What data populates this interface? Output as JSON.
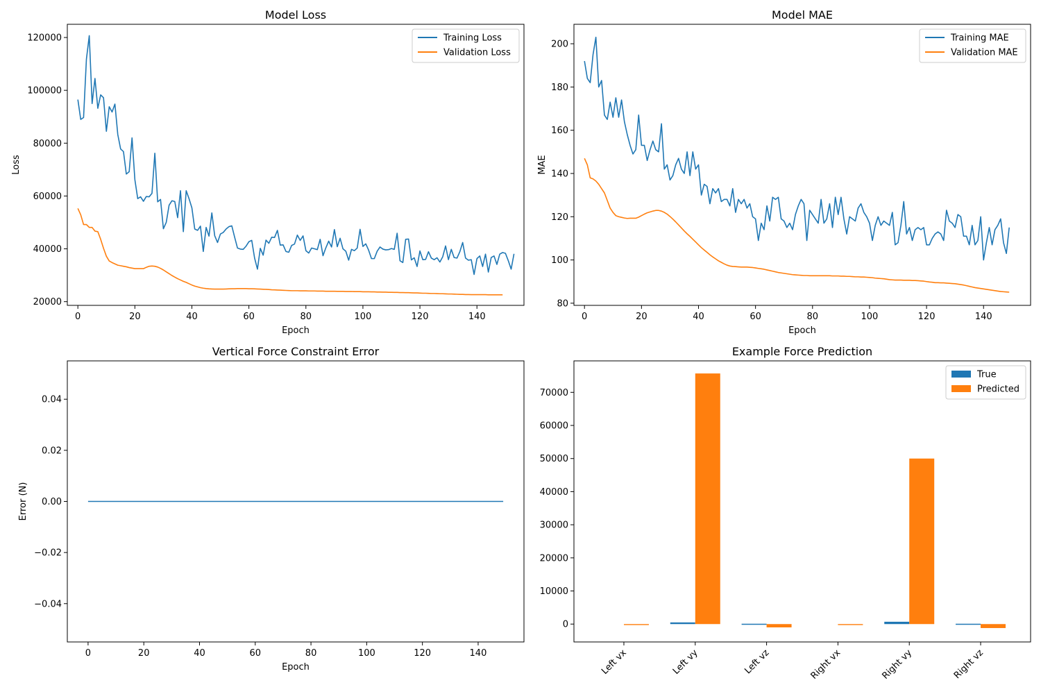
{
  "chart_data": [
    {
      "type": "line",
      "title": "Model Loss",
      "xlabel": "Epoch",
      "ylabel": "Loss",
      "xlim": [
        -3.7,
        156.5
      ],
      "ylim": [
        18600,
        125000
      ],
      "xticks": [
        0,
        20,
        40,
        60,
        80,
        100,
        120,
        140
      ],
      "yticks": [
        20000,
        40000,
        60000,
        80000,
        100000,
        120000
      ],
      "legend": {
        "placement": "top-right"
      },
      "grid": false,
      "series": [
        {
          "name": "Training Loss",
          "color": "#1f77b4",
          "x_start": 0,
          "x_step": 1,
          "y": [
            96500,
            89000,
            89700,
            111800,
            120700,
            95000,
            104500,
            93200,
            98300,
            97200,
            84500,
            93800,
            91800,
            94800,
            83300,
            77800,
            76800,
            68300,
            69200,
            82000,
            66200,
            59000,
            59700,
            58000,
            59800,
            59700,
            61000,
            76200,
            57800,
            58700,
            47600,
            50000,
            56500,
            58200,
            57900,
            51800,
            62000,
            46500,
            62000,
            59000,
            55500,
            47500,
            47000,
            48600,
            39000,
            48100,
            44800,
            53600,
            45000,
            42400,
            45600,
            46200,
            47500,
            48400,
            48700,
            44400,
            40300,
            39900,
            39800,
            41000,
            42700,
            43200,
            36500,
            32300,
            40200,
            37600,
            43300,
            42100,
            44400,
            44300,
            47000,
            41400,
            41500,
            39000,
            38700,
            41300,
            41800,
            45200,
            43200,
            44900,
            39300,
            38400,
            40300,
            40000,
            39700,
            43600,
            37400,
            40400,
            42900,
            40700,
            47300,
            40800,
            44000,
            40000,
            39100,
            35700,
            39800,
            39300,
            40300,
            47400,
            40900,
            41900,
            39500,
            36300,
            36300,
            39100,
            40700,
            39900,
            39600,
            39700,
            40100,
            39800,
            45900,
            35500,
            34800,
            43600,
            43700,
            35800,
            36600,
            33300,
            39200,
            35900,
            36000,
            38900,
            36500,
            35900,
            36600,
            35000,
            37000,
            41100,
            35900,
            39800,
            36700,
            36500,
            38900,
            42400,
            36500,
            35700,
            35900,
            30300,
            36300,
            37300,
            33300,
            38000,
            31200,
            36700,
            37300,
            34100,
            38000,
            38600,
            38300,
            35500,
            32300,
            38100
          ]
        },
        {
          "name": "Validation Loss",
          "color": "#ff7f0e",
          "x_start": 0,
          "x_step": 1,
          "y": [
            55300,
            52900,
            49200,
            49200,
            48100,
            48100,
            46700,
            46500,
            43600,
            40200,
            37200,
            35400,
            34800,
            34300,
            33800,
            33600,
            33400,
            33200,
            32900,
            32700,
            32500,
            32500,
            32500,
            32500,
            33000,
            33400,
            33500,
            33400,
            33100,
            32600,
            32000,
            31300,
            30600,
            29900,
            29300,
            28700,
            28200,
            27700,
            27300,
            26800,
            26300,
            25900,
            25600,
            25300,
            25100,
            24950,
            24850,
            24800,
            24750,
            24750,
            24750,
            24750,
            24800,
            24850,
            24900,
            24900,
            24950,
            24950,
            24950,
            24950,
            24900,
            24900,
            24850,
            24800,
            24750,
            24700,
            24650,
            24600,
            24500,
            24450,
            24400,
            24350,
            24300,
            24250,
            24200,
            24150,
            24150,
            24150,
            24100,
            24100,
            24100,
            24050,
            24050,
            24050,
            24000,
            24000,
            24000,
            23950,
            23950,
            23950,
            23950,
            23900,
            23900,
            23900,
            23850,
            23850,
            23850,
            23800,
            23800,
            23800,
            23750,
            23750,
            23750,
            23700,
            23700,
            23650,
            23650,
            23600,
            23600,
            23550,
            23550,
            23500,
            23500,
            23450,
            23450,
            23400,
            23400,
            23350,
            23300,
            23300,
            23250,
            23200,
            23200,
            23150,
            23100,
            23100,
            23050,
            23000,
            23000,
            22950,
            22900,
            22900,
            22850,
            22800,
            22750,
            22750,
            22700,
            22700,
            22650,
            22650,
            22650,
            22650,
            22650,
            22650,
            22600,
            22600,
            22600,
            22600,
            22600,
            22600
          ]
        }
      ]
    },
    {
      "type": "line",
      "title": "Model MAE",
      "xlabel": "Epoch",
      "ylabel": "MAE",
      "xlim": [
        -3.7,
        156.5
      ],
      "ylim": [
        79,
        209
      ],
      "xticks": [
        0,
        20,
        40,
        60,
        80,
        100,
        120,
        140
      ],
      "yticks": [
        80,
        100,
        120,
        140,
        160,
        180,
        200
      ],
      "legend": {
        "placement": "top-right"
      },
      "grid": false,
      "series": [
        {
          "name": "Training MAE",
          "color": "#1f77b4",
          "x_start": 0,
          "x_step": 1,
          "y": [
            192,
            184,
            182,
            195,
            203,
            180,
            183,
            167,
            165,
            173,
            166,
            175,
            166,
            174,
            164,
            158,
            153,
            149,
            151,
            167,
            153,
            153,
            146,
            151,
            155,
            151,
            150,
            163,
            142,
            144,
            137,
            139,
            144,
            147,
            142,
            140,
            150,
            139,
            150,
            142,
            144,
            130,
            135,
            134,
            126,
            133,
            131,
            133,
            127,
            128,
            128,
            125,
            133,
            122,
            128,
            126,
            128,
            124,
            126,
            120,
            119,
            109,
            117,
            114,
            125,
            118,
            129,
            128,
            129,
            119,
            118,
            115,
            117,
            114,
            121,
            125,
            128,
            126,
            109,
            123,
            121,
            119,
            117,
            128,
            117,
            119,
            126,
            115,
            129,
            121,
            129,
            119,
            112,
            120,
            119,
            118,
            124,
            126,
            122,
            120,
            117,
            109,
            116,
            120,
            116,
            118,
            117,
            116,
            122,
            107,
            108,
            116,
            127,
            112,
            115,
            109,
            114,
            115,
            114,
            115,
            107,
            107,
            110,
            112,
            113,
            112,
            109,
            123,
            118,
            117,
            115,
            121,
            120,
            111,
            111,
            107,
            116,
            107,
            109,
            120,
            100,
            108,
            115,
            107,
            114,
            116,
            119,
            108,
            103,
            115
          ]
        },
        {
          "name": "Validation MAE",
          "color": "#ff7f0e",
          "x_start": 0,
          "x_step": 1,
          "y": [
            147,
            144,
            138,
            137.5,
            136.5,
            135,
            133,
            131,
            127.5,
            124,
            122,
            120.5,
            120,
            119.7,
            119.4,
            119.2,
            119.3,
            119.3,
            119.3,
            119.8,
            120.5,
            121.2,
            121.8,
            122.2,
            122.6,
            122.9,
            122.9,
            122.6,
            122,
            121.2,
            120.1,
            118.9,
            117.6,
            116.2,
            114.8,
            113.4,
            112.1,
            110.9,
            109.6,
            108.3,
            107,
            105.7,
            104.6,
            103.5,
            102.4,
            101.4,
            100.5,
            99.6,
            98.9,
            98.2,
            97.6,
            97.2,
            97,
            96.9,
            96.8,
            96.7,
            96.7,
            96.7,
            96.6,
            96.5,
            96.3,
            96.1,
            95.9,
            95.7,
            95.4,
            95.1,
            94.8,
            94.5,
            94.2,
            94,
            93.8,
            93.6,
            93.4,
            93.2,
            93.1,
            93,
            92.9,
            92.8,
            92.8,
            92.7,
            92.7,
            92.7,
            92.7,
            92.7,
            92.7,
            92.7,
            92.7,
            92.6,
            92.6,
            92.6,
            92.5,
            92.5,
            92.4,
            92.4,
            92.3,
            92.2,
            92.2,
            92.1,
            92.1,
            92,
            91.9,
            91.8,
            91.6,
            91.5,
            91.4,
            91.3,
            91.1,
            90.9,
            90.8,
            90.7,
            90.7,
            90.7,
            90.6,
            90.6,
            90.6,
            90.5,
            90.5,
            90.4,
            90.3,
            90.2,
            90,
            89.8,
            89.7,
            89.5,
            89.5,
            89.4,
            89.4,
            89.3,
            89.2,
            89.1,
            89,
            88.8,
            88.6,
            88.4,
            88.1,
            87.8,
            87.5,
            87.2,
            87,
            86.8,
            86.6,
            86.4,
            86.2,
            86,
            85.8,
            85.6,
            85.4,
            85.3,
            85.2,
            85.1
          ]
        }
      ]
    },
    {
      "type": "line",
      "title": "Vertical Force Constraint Error",
      "xlabel": "Epoch",
      "ylabel": "Error (N)",
      "xlim": [
        -7.45,
        156.45
      ],
      "ylim": [
        -0.055,
        0.055
      ],
      "xticks": [
        0,
        20,
        40,
        60,
        80,
        100,
        120,
        140
      ],
      "yticks": [
        -0.04,
        -0.02,
        0.0,
        0.02,
        0.04
      ],
      "ytick_labels": [
        "−0.04",
        "−0.02",
        "0.00",
        "0.02",
        "0.04"
      ],
      "grid": false,
      "series": [
        {
          "color": "#1f77b4",
          "x": [
            0,
            149
          ],
          "y": [
            0,
            0
          ]
        }
      ]
    },
    {
      "type": "bar",
      "title": "Example Force Prediction",
      "categories": [
        "Left vx",
        "Left vy",
        "Left vz",
        "Right vx",
        "Right vy",
        "Right vz"
      ],
      "ylim": [
        -5400,
        79500
      ],
      "yticks": [
        0,
        10000,
        20000,
        30000,
        40000,
        50000,
        60000,
        70000
      ],
      "legend": {
        "placement": "top-right"
      },
      "grid": false,
      "series": [
        {
          "name": "True",
          "color": "#1f77b4",
          "values": [
            0,
            500,
            100,
            0,
            700,
            100
          ]
        },
        {
          "name": "Predicted",
          "color": "#ff7f0e",
          "values": [
            -300,
            75700,
            -1000,
            -300,
            50000,
            -1200
          ]
        }
      ]
    }
  ]
}
